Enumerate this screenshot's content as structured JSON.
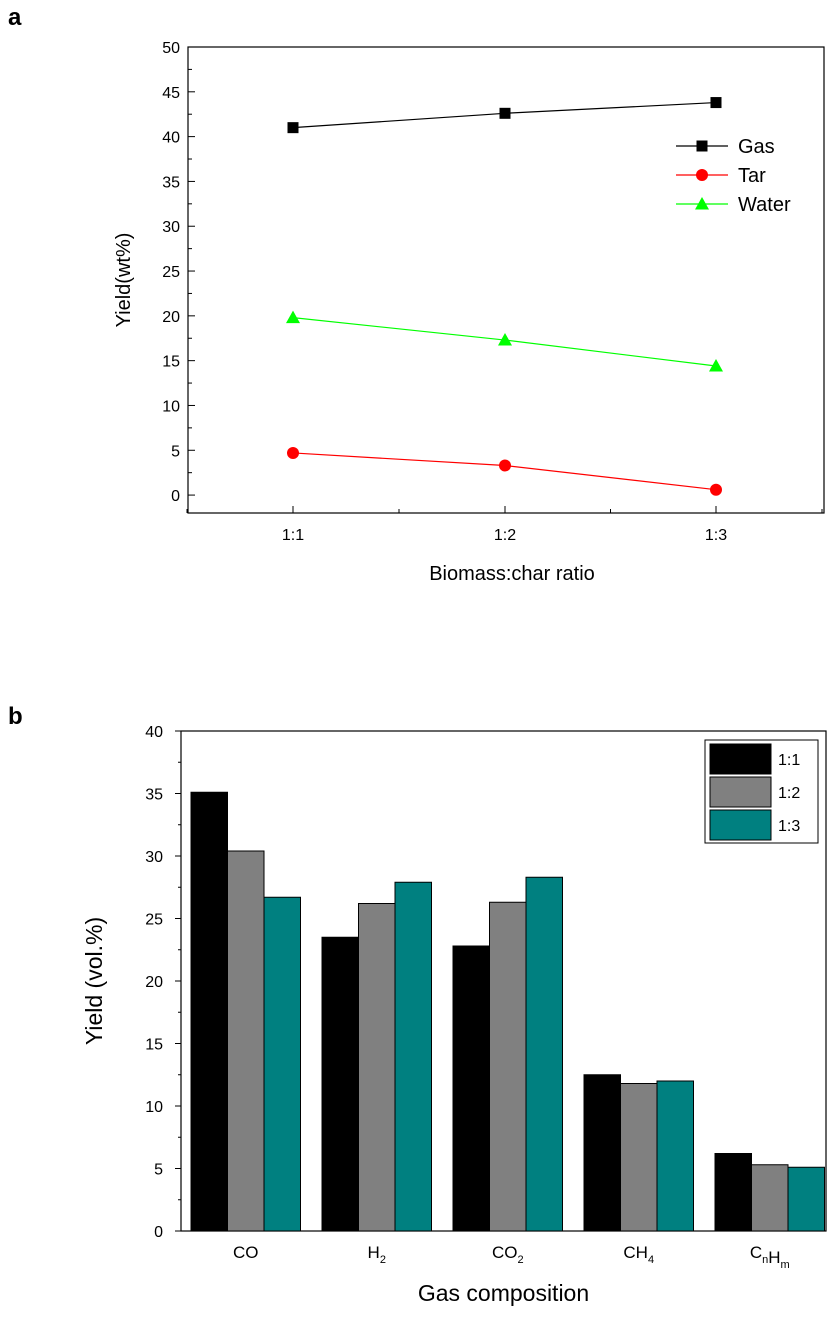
{
  "panels": {
    "a": "a",
    "b": "b"
  },
  "chart_data": [
    {
      "type": "line",
      "xlabel": "Biomass:char ratio",
      "ylabel": "Yield(wt%)",
      "categories": [
        "1:1",
        "1:2",
        "1:3"
      ],
      "ylim": [
        -2,
        50
      ],
      "yticks": [
        0,
        5,
        10,
        15,
        20,
        25,
        30,
        35,
        40,
        45,
        50
      ],
      "grid": false,
      "legend": "right",
      "series": [
        {
          "name": "Gas",
          "marker": "square",
          "color": "#000000",
          "values": [
            41.0,
            42.6,
            43.8
          ]
        },
        {
          "name": "Tar",
          "marker": "circle",
          "color": "#ff0000",
          "values": [
            4.7,
            3.3,
            0.6
          ]
        },
        {
          "name": "Water",
          "marker": "triangle",
          "color": "#00ff00",
          "values": [
            19.8,
            17.3,
            14.4
          ]
        }
      ]
    },
    {
      "type": "bar",
      "xlabel": "Gas composition",
      "ylabel": "Yield (vol.%)",
      "categories": [
        {
          "base": "CO",
          "sub": ""
        },
        {
          "base": "H",
          "sub": "2"
        },
        {
          "base": "CO",
          "sub": "2"
        },
        {
          "base": "CH",
          "sub": "4"
        },
        {
          "base": "C",
          "sub": "n",
          "base2": "H",
          "sub2": "m"
        }
      ],
      "ylim": [
        0,
        40
      ],
      "yticks": [
        0,
        5,
        10,
        15,
        20,
        25,
        30,
        35,
        40
      ],
      "grid": false,
      "legend": "top-right",
      "series": [
        {
          "name": "1:1",
          "color": "#000000",
          "values": [
            35.1,
            23.5,
            22.8,
            12.5,
            6.2
          ]
        },
        {
          "name": "1:2",
          "color": "#808080",
          "values": [
            30.4,
            26.2,
            26.3,
            11.8,
            5.3
          ]
        },
        {
          "name": "1:3",
          "color": "#008080",
          "values": [
            26.7,
            27.9,
            28.3,
            12.0,
            5.1
          ]
        }
      ]
    }
  ]
}
